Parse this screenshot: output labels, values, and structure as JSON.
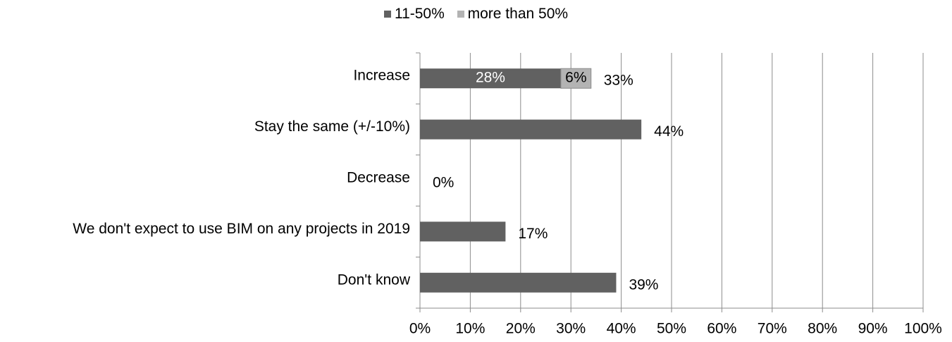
{
  "chart_data": {
    "type": "bar",
    "orientation": "horizontal",
    "stacked": true,
    "categories": [
      "Increase",
      "Stay the same (+/-10%)",
      "Decrease",
      "We don't expect to use BIM on any projects in 2019",
      "Don't know"
    ],
    "series": [
      {
        "name": "11-50%",
        "color": "#616161",
        "values": [
          28,
          44,
          0,
          17,
          39
        ]
      },
      {
        "name": "more than 50%",
        "color": "#b3b3b3",
        "values": [
          6,
          0,
          0,
          0,
          0
        ]
      }
    ],
    "segment_labels": [
      [
        "28%",
        "6%"
      ],
      [
        null,
        null
      ],
      [
        null,
        null
      ],
      [
        null,
        null
      ],
      [
        null,
        null
      ]
    ],
    "total_labels": [
      "33%",
      "44%",
      "0%",
      "17%",
      "39%"
    ],
    "xlim": [
      0,
      100
    ],
    "xticks": [
      "0%",
      "10%",
      "20%",
      "30%",
      "40%",
      "50%",
      "60%",
      "70%",
      "80%",
      "90%",
      "100%"
    ],
    "grid": "vertical",
    "legend_position": "top"
  }
}
